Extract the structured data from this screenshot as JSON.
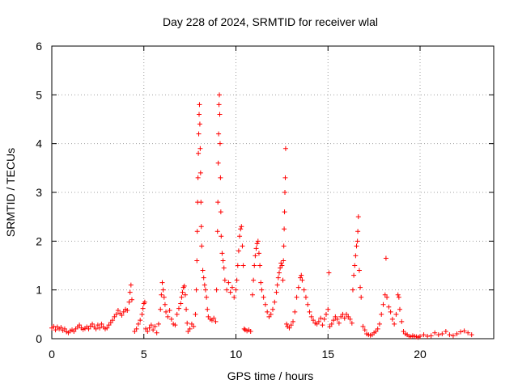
{
  "chart_data": {
    "type": "scatter",
    "title": "Day 228 of 2024, SRMTID for receiver wlal",
    "xlabel": "GPS time / hours",
    "ylabel": "SRMTID / TECUs",
    "xlim": [
      0,
      24
    ],
    "ylim": [
      0,
      6
    ],
    "xticks": [
      0,
      5,
      10,
      15,
      20
    ],
    "xtick_labels": [
      "0",
      "5",
      "10",
      "15",
      "20"
    ],
    "yticks": [
      0,
      1,
      2,
      3,
      4,
      5,
      6
    ],
    "ytick_labels": [
      "0",
      "1",
      "2",
      "3",
      "4",
      "5",
      "6"
    ],
    "grid": true,
    "marker": "+",
    "series": [
      {
        "name": "SRMTID",
        "color": "#ff0000",
        "points": [
          [
            0.0,
            0.22
          ],
          [
            0.1,
            0.25
          ],
          [
            0.2,
            0.18
          ],
          [
            0.3,
            0.24
          ],
          [
            0.4,
            0.2
          ],
          [
            0.5,
            0.23
          ],
          [
            0.6,
            0.17
          ],
          [
            0.7,
            0.2
          ],
          [
            0.8,
            0.14
          ],
          [
            0.9,
            0.12
          ],
          [
            1.0,
            0.16
          ],
          [
            1.1,
            0.18
          ],
          [
            1.2,
            0.15
          ],
          [
            1.3,
            0.2
          ],
          [
            1.4,
            0.24
          ],
          [
            1.5,
            0.28
          ],
          [
            1.6,
            0.22
          ],
          [
            1.7,
            0.19
          ],
          [
            1.8,
            0.21
          ],
          [
            1.9,
            0.24
          ],
          [
            2.0,
            0.2
          ],
          [
            2.1,
            0.26
          ],
          [
            2.2,
            0.3
          ],
          [
            2.3,
            0.24
          ],
          [
            2.4,
            0.2
          ],
          [
            2.5,
            0.28
          ],
          [
            2.6,
            0.22
          ],
          [
            2.7,
            0.3
          ],
          [
            2.8,
            0.24
          ],
          [
            2.9,
            0.2
          ],
          [
            3.0,
            0.22
          ],
          [
            3.1,
            0.28
          ],
          [
            3.2,
            0.33
          ],
          [
            3.3,
            0.38
          ],
          [
            3.4,
            0.45
          ],
          [
            3.5,
            0.5
          ],
          [
            3.6,
            0.58
          ],
          [
            3.7,
            0.52
          ],
          [
            3.8,
            0.48
          ],
          [
            3.9,
            0.55
          ],
          [
            4.0,
            0.6
          ],
          [
            4.1,
            0.58
          ],
          [
            4.2,
            0.75
          ],
          [
            4.25,
            0.95
          ],
          [
            4.3,
            1.1
          ],
          [
            4.35,
            0.8
          ],
          [
            4.5,
            0.15
          ],
          [
            4.6,
            0.2
          ],
          [
            4.7,
            0.3
          ],
          [
            4.8,
            0.38
          ],
          [
            4.9,
            0.5
          ],
          [
            4.95,
            0.62
          ],
          [
            5.0,
            0.72
          ],
          [
            5.05,
            0.75
          ],
          [
            5.1,
            0.2
          ],
          [
            5.2,
            0.15
          ],
          [
            5.3,
            0.22
          ],
          [
            5.4,
            0.28
          ],
          [
            5.5,
            0.18
          ],
          [
            5.6,
            0.25
          ],
          [
            5.7,
            0.12
          ],
          [
            5.8,
            0.3
          ],
          [
            5.9,
            0.6
          ],
          [
            5.95,
            0.9
          ],
          [
            6.0,
            1.15
          ],
          [
            6.05,
            1.0
          ],
          [
            6.1,
            0.85
          ],
          [
            6.15,
            0.7
          ],
          [
            6.2,
            0.55
          ],
          [
            6.3,
            0.45
          ],
          [
            6.4,
            0.58
          ],
          [
            6.5,
            0.4
          ],
          [
            6.6,
            0.3
          ],
          [
            6.7,
            0.28
          ],
          [
            6.8,
            0.5
          ],
          [
            6.9,
            0.62
          ],
          [
            7.0,
            0.72
          ],
          [
            7.05,
            0.85
          ],
          [
            7.1,
            0.95
          ],
          [
            7.15,
            1.05
          ],
          [
            7.2,
            1.08
          ],
          [
            7.25,
            0.9
          ],
          [
            7.3,
            0.6
          ],
          [
            7.35,
            0.32
          ],
          [
            7.4,
            0.15
          ],
          [
            7.5,
            0.2
          ],
          [
            7.6,
            0.3
          ],
          [
            7.7,
            0.25
          ],
          [
            7.8,
            0.5
          ],
          [
            7.85,
            1.0
          ],
          [
            7.88,
            1.6
          ],
          [
            7.9,
            2.2
          ],
          [
            7.92,
            2.8
          ],
          [
            7.94,
            3.3
          ],
          [
            7.96,
            3.8
          ],
          [
            7.98,
            4.2
          ],
          [
            8.0,
            4.6
          ],
          [
            8.02,
            4.8
          ],
          [
            8.04,
            4.4
          ],
          [
            8.06,
            3.9
          ],
          [
            8.08,
            3.4
          ],
          [
            8.1,
            2.8
          ],
          [
            8.12,
            2.3
          ],
          [
            8.14,
            1.9
          ],
          [
            8.2,
            1.4
          ],
          [
            8.25,
            1.25
          ],
          [
            8.3,
            1.1
          ],
          [
            8.35,
            1.0
          ],
          [
            8.4,
            0.85
          ],
          [
            8.45,
            0.6
          ],
          [
            8.5,
            0.45
          ],
          [
            8.6,
            0.4
          ],
          [
            8.7,
            0.38
          ],
          [
            8.8,
            0.42
          ],
          [
            8.9,
            0.35
          ],
          [
            8.95,
            1.0
          ],
          [
            9.0,
            2.2
          ],
          [
            9.02,
            2.8
          ],
          [
            9.04,
            3.6
          ],
          [
            9.06,
            4.2
          ],
          [
            9.08,
            4.8
          ],
          [
            9.1,
            5.0
          ],
          [
            9.12,
            4.6
          ],
          [
            9.14,
            4.0
          ],
          [
            9.16,
            3.3
          ],
          [
            9.18,
            2.6
          ],
          [
            9.2,
            2.1
          ],
          [
            9.25,
            1.75
          ],
          [
            9.3,
            1.6
          ],
          [
            9.35,
            1.45
          ],
          [
            9.4,
            1.2
          ],
          [
            9.5,
            1.0
          ],
          [
            9.6,
            1.15
          ],
          [
            9.7,
            0.95
          ],
          [
            9.8,
            1.05
          ],
          [
            9.9,
            0.85
          ],
          [
            10.0,
            1.0
          ],
          [
            10.05,
            1.2
          ],
          [
            10.1,
            1.5
          ],
          [
            10.15,
            1.8
          ],
          [
            10.2,
            2.1
          ],
          [
            10.25,
            2.25
          ],
          [
            10.3,
            2.3
          ],
          [
            10.35,
            1.9
          ],
          [
            10.4,
            1.5
          ],
          [
            10.45,
            0.2
          ],
          [
            10.5,
            0.18
          ],
          [
            10.6,
            0.16
          ],
          [
            10.7,
            0.18
          ],
          [
            10.8,
            0.15
          ],
          [
            10.9,
            0.9
          ],
          [
            10.95,
            1.2
          ],
          [
            11.0,
            1.5
          ],
          [
            11.05,
            1.7
          ],
          [
            11.1,
            1.85
          ],
          [
            11.15,
            1.95
          ],
          [
            11.2,
            2.0
          ],
          [
            11.25,
            1.75
          ],
          [
            11.3,
            1.5
          ],
          [
            11.35,
            1.15
          ],
          [
            11.4,
            1.0
          ],
          [
            11.5,
            0.85
          ],
          [
            11.6,
            0.7
          ],
          [
            11.7,
            0.55
          ],
          [
            11.8,
            0.45
          ],
          [
            11.9,
            0.5
          ],
          [
            12.0,
            0.6
          ],
          [
            12.1,
            0.75
          ],
          [
            12.2,
            0.95
          ],
          [
            12.25,
            1.1
          ],
          [
            12.3,
            1.25
          ],
          [
            12.35,
            1.35
          ],
          [
            12.4,
            1.45
          ],
          [
            12.45,
            1.55
          ],
          [
            12.5,
            1.5
          ],
          [
            12.55,
            1.2
          ],
          [
            12.58,
            1.6
          ],
          [
            12.6,
            1.9
          ],
          [
            12.62,
            2.25
          ],
          [
            12.64,
            2.6
          ],
          [
            12.66,
            3.0
          ],
          [
            12.68,
            3.3
          ],
          [
            12.7,
            3.9
          ],
          [
            12.75,
            0.3
          ],
          [
            12.8,
            0.25
          ],
          [
            12.9,
            0.22
          ],
          [
            13.0,
            0.28
          ],
          [
            13.1,
            0.35
          ],
          [
            13.2,
            0.55
          ],
          [
            13.3,
            0.85
          ],
          [
            13.4,
            1.05
          ],
          [
            13.5,
            1.25
          ],
          [
            13.55,
            1.3
          ],
          [
            13.6,
            1.2
          ],
          [
            13.7,
            1.0
          ],
          [
            13.8,
            0.85
          ],
          [
            13.9,
            0.7
          ],
          [
            14.0,
            0.55
          ],
          [
            14.1,
            0.45
          ],
          [
            14.2,
            0.38
          ],
          [
            14.3,
            0.32
          ],
          [
            14.4,
            0.3
          ],
          [
            14.5,
            0.35
          ],
          [
            14.6,
            0.42
          ],
          [
            14.7,
            0.28
          ],
          [
            14.8,
            0.4
          ],
          [
            14.9,
            0.5
          ],
          [
            15.0,
            0.6
          ],
          [
            15.05,
            1.35
          ],
          [
            15.1,
            0.25
          ],
          [
            15.2,
            0.3
          ],
          [
            15.3,
            0.38
          ],
          [
            15.4,
            0.45
          ],
          [
            15.5,
            0.4
          ],
          [
            15.6,
            0.32
          ],
          [
            15.7,
            0.45
          ],
          [
            15.8,
            0.5
          ],
          [
            15.9,
            0.42
          ],
          [
            16.0,
            0.5
          ],
          [
            16.1,
            0.45
          ],
          [
            16.2,
            0.4
          ],
          [
            16.3,
            0.32
          ],
          [
            16.35,
            1.0
          ],
          [
            16.4,
            1.3
          ],
          [
            16.45,
            1.5
          ],
          [
            16.5,
            1.7
          ],
          [
            16.55,
            1.9
          ],
          [
            16.6,
            2.0
          ],
          [
            16.62,
            2.2
          ],
          [
            16.65,
            2.5
          ],
          [
            16.7,
            1.4
          ],
          [
            16.75,
            1.05
          ],
          [
            16.8,
            0.85
          ],
          [
            16.9,
            0.25
          ],
          [
            17.0,
            0.18
          ],
          [
            17.1,
            0.1
          ],
          [
            17.2,
            0.08
          ],
          [
            17.3,
            0.07
          ],
          [
            17.4,
            0.08
          ],
          [
            17.5,
            0.12
          ],
          [
            17.6,
            0.15
          ],
          [
            17.7,
            0.2
          ],
          [
            17.8,
            0.3
          ],
          [
            17.9,
            0.5
          ],
          [
            18.0,
            0.7
          ],
          [
            18.1,
            0.9
          ],
          [
            18.15,
            1.65
          ],
          [
            18.2,
            0.85
          ],
          [
            18.3,
            0.65
          ],
          [
            18.4,
            0.55
          ],
          [
            18.5,
            0.4
          ],
          [
            18.6,
            0.3
          ],
          [
            18.7,
            0.5
          ],
          [
            18.8,
            0.9
          ],
          [
            18.85,
            0.85
          ],
          [
            18.9,
            0.6
          ],
          [
            19.0,
            0.35
          ],
          [
            19.1,
            0.15
          ],
          [
            19.2,
            0.1
          ],
          [
            19.3,
            0.08
          ],
          [
            19.4,
            0.05
          ],
          [
            19.5,
            0.04
          ],
          [
            19.6,
            0.06
          ],
          [
            19.7,
            0.05
          ],
          [
            19.8,
            0.04
          ],
          [
            19.9,
            0.03
          ],
          [
            20.0,
            0.05
          ],
          [
            20.2,
            0.08
          ],
          [
            20.4,
            0.05
          ],
          [
            20.6,
            0.06
          ],
          [
            20.8,
            0.12
          ],
          [
            21.0,
            0.08
          ],
          [
            21.2,
            0.1
          ],
          [
            21.4,
            0.15
          ],
          [
            21.6,
            0.08
          ],
          [
            21.8,
            0.06
          ],
          [
            22.0,
            0.1
          ],
          [
            22.2,
            0.14
          ],
          [
            22.4,
            0.16
          ],
          [
            22.6,
            0.12
          ],
          [
            22.8,
            0.08
          ]
        ]
      }
    ]
  }
}
